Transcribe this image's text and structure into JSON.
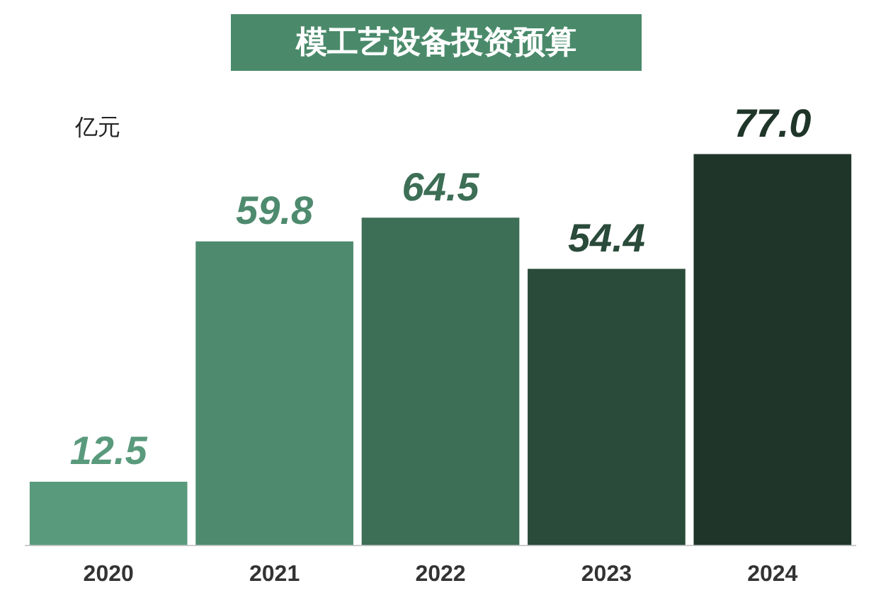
{
  "chart_data": {
    "type": "bar",
    "title": "模工艺设备投资预算",
    "ylabel": "亿元",
    "categories": [
      "2020",
      "2021",
      "2022",
      "2023",
      "2024"
    ],
    "values": [
      12.5,
      59.8,
      64.5,
      54.4,
      77.0
    ],
    "colors": [
      "#5a9a7c",
      "#4e8a6e",
      "#3d6e56",
      "#2a4a3a",
      "#1f3529"
    ],
    "value_labels": [
      "12.5",
      "59.8",
      "64.5",
      "54.4",
      "77.0"
    ],
    "grid": false,
    "legend": false
  }
}
